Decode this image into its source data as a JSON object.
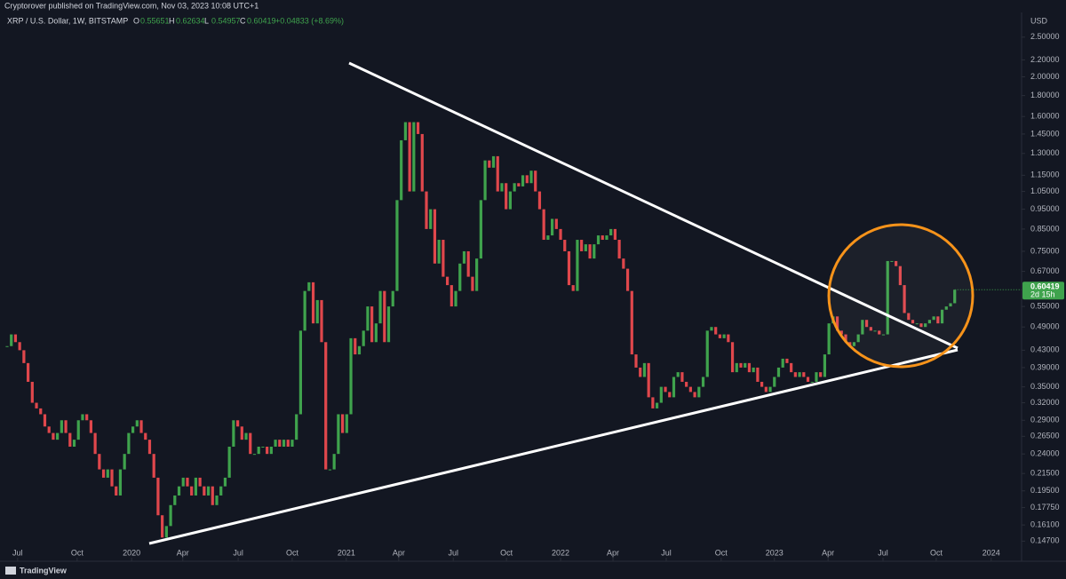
{
  "chart_data": {
    "type": "candlestick",
    "title": "Cryptorover published on TradingView.com, Nov 03, 2023 10:08 UTC+1",
    "symbol": "XRP / U.S. Dollar, 1W, BITSTAMP",
    "legend_items": [
      {
        "key": "O",
        "value": "0.55651"
      },
      {
        "key": "H",
        "value": "0.62634"
      },
      {
        "key": "L",
        "value": "0.54957"
      },
      {
        "key": "C",
        "value": "0.60419"
      }
    ],
    "change": "+0.04833 (+8.69%)",
    "currency": "USD",
    "last_price_label": "0.60419",
    "countdown": "2d 15h",
    "brand": "TradingView",
    "log_scale": true,
    "grid": false,
    "series": [
      {
        "up_color": "#3fa34d",
        "down_color": "#e0474c",
        "values": [
          0.44,
          0.47,
          0.45,
          0.43,
          0.4,
          0.36,
          0.32,
          0.31,
          0.3,
          0.28,
          0.27,
          0.26,
          0.27,
          0.29,
          0.27,
          0.25,
          0.26,
          0.29,
          0.3,
          0.29,
          0.27,
          0.24,
          0.22,
          0.21,
          0.22,
          0.2,
          0.19,
          0.22,
          0.24,
          0.27,
          0.28,
          0.29,
          0.27,
          0.26,
          0.24,
          0.21,
          0.17,
          0.15,
          0.16,
          0.18,
          0.19,
          0.2,
          0.21,
          0.2,
          0.19,
          0.21,
          0.2,
          0.19,
          0.2,
          0.18,
          0.19,
          0.2,
          0.21,
          0.25,
          0.29,
          0.28,
          0.26,
          0.27,
          0.24,
          0.24,
          0.25,
          0.25,
          0.24,
          0.25,
          0.26,
          0.25,
          0.26,
          0.25,
          0.26,
          0.3,
          0.48,
          0.6,
          0.63,
          0.5,
          0.57,
          0.45,
          0.22,
          0.22,
          0.24,
          0.3,
          0.27,
          0.3,
          0.46,
          0.42,
          0.44,
          0.48,
          0.55,
          0.45,
          0.5,
          0.6,
          0.45,
          0.55,
          0.6,
          1.0,
          1.4,
          1.55,
          1.05,
          1.55,
          1.45,
          1.05,
          0.85,
          0.95,
          0.7,
          0.8,
          0.65,
          0.62,
          0.55,
          0.6,
          0.7,
          0.75,
          0.65,
          0.6,
          0.72,
          1.0,
          1.25,
          1.2,
          1.28,
          1.05,
          1.1,
          0.95,
          1.05,
          1.1,
          1.08,
          1.15,
          1.1,
          1.18,
          1.05,
          0.95,
          0.8,
          0.82,
          0.9,
          0.85,
          0.8,
          0.75,
          0.62,
          0.6,
          0.8,
          0.75,
          0.78,
          0.72,
          0.78,
          0.82,
          0.8,
          0.82,
          0.85,
          0.8,
          0.72,
          0.68,
          0.6,
          0.42,
          0.39,
          0.37,
          0.4,
          0.33,
          0.31,
          0.32,
          0.35,
          0.34,
          0.33,
          0.37,
          0.38,
          0.36,
          0.35,
          0.34,
          0.33,
          0.35,
          0.37,
          0.48,
          0.49,
          0.47,
          0.46,
          0.47,
          0.45,
          0.38,
          0.4,
          0.39,
          0.4,
          0.38,
          0.39,
          0.36,
          0.35,
          0.34,
          0.35,
          0.37,
          0.39,
          0.41,
          0.4,
          0.38,
          0.37,
          0.38,
          0.37,
          0.36,
          0.36,
          0.38,
          0.37,
          0.42,
          0.5,
          0.52,
          0.48,
          0.47,
          0.45,
          0.44,
          0.45,
          0.47,
          0.51,
          0.49,
          0.48,
          0.48,
          0.47,
          0.47,
          0.71,
          0.71,
          0.69,
          0.62,
          0.53,
          0.51,
          0.5,
          0.5,
          0.49,
          0.5,
          0.51,
          0.52,
          0.5,
          0.54,
          0.55,
          0.56,
          0.60419
        ]
      }
    ],
    "ylim": [
      0.138,
      2.96
    ],
    "yticks": [
      {
        "value": 2.5,
        "label": "2.50000"
      },
      {
        "value": 2.2,
        "label": "2.20000"
      },
      {
        "value": 2.0,
        "label": "2.00000"
      },
      {
        "value": 1.8,
        "label": "1.80000"
      },
      {
        "value": 1.6,
        "label": "1.60000"
      },
      {
        "value": 1.45,
        "label": "1.45000"
      },
      {
        "value": 1.3,
        "label": "1.30000"
      },
      {
        "value": 1.15,
        "label": "1.15000"
      },
      {
        "value": 1.05,
        "label": "1.05000"
      },
      {
        "value": 0.95,
        "label": "0.95000"
      },
      {
        "value": 0.85,
        "label": "0.85000"
      },
      {
        "value": 0.75,
        "label": "0.75000"
      },
      {
        "value": 0.67,
        "label": "0.67000"
      },
      {
        "value": 0.55,
        "label": "0.55000"
      },
      {
        "value": 0.49,
        "label": "0.49000"
      },
      {
        "value": 0.43,
        "label": "0.43000"
      },
      {
        "value": 0.39,
        "label": "0.39000"
      },
      {
        "value": 0.35,
        "label": "0.35000"
      },
      {
        "value": 0.32,
        "label": "0.32000"
      },
      {
        "value": 0.29,
        "label": "0.29000"
      },
      {
        "value": 0.265,
        "label": "0.26500"
      },
      {
        "value": 0.24,
        "label": "0.24000"
      },
      {
        "value": 0.215,
        "label": "0.21500"
      },
      {
        "value": 0.195,
        "label": "0.19500"
      },
      {
        "value": 0.1775,
        "label": "0.17750"
      },
      {
        "value": 0.161,
        "label": "0.16100"
      },
      {
        "value": 0.147,
        "label": "0.14700"
      }
    ],
    "xticks": [
      {
        "value": 2.5,
        "label": "Jul"
      },
      {
        "value": 16.7,
        "label": "Oct"
      },
      {
        "value": 29.7,
        "label": "2020"
      },
      {
        "value": 41.9,
        "label": "Apr"
      },
      {
        "value": 55.1,
        "label": "Jul"
      },
      {
        "value": 68,
        "label": "Oct"
      },
      {
        "value": 80.9,
        "label": "2021"
      },
      {
        "value": 93.4,
        "label": "Apr"
      },
      {
        "value": 106.4,
        "label": "Jul"
      },
      {
        "value": 119.1,
        "label": "Oct"
      },
      {
        "value": 132,
        "label": "2022"
      },
      {
        "value": 144.5,
        "label": "Apr"
      },
      {
        "value": 157.2,
        "label": "Jul"
      },
      {
        "value": 170.3,
        "label": "Oct"
      },
      {
        "value": 183,
        "label": "2023"
      },
      {
        "value": 195.8,
        "label": "Apr"
      },
      {
        "value": 208.9,
        "label": "Jul"
      },
      {
        "value": 221.6,
        "label": "Oct"
      },
      {
        "value": 234.7,
        "label": "2024"
      }
    ]
  }
}
